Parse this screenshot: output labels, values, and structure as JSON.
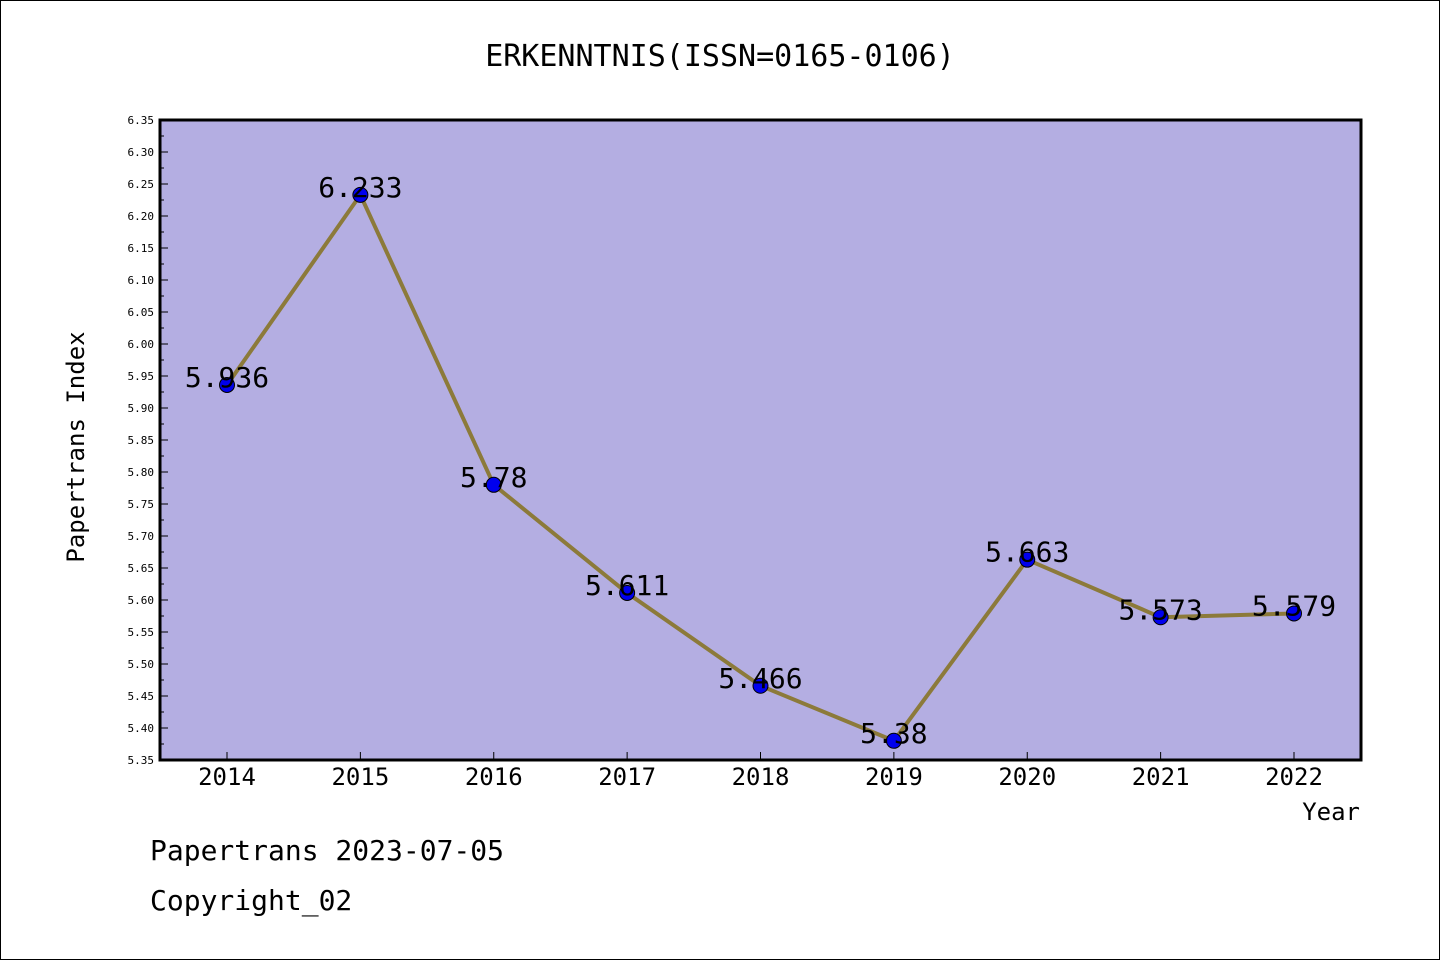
{
  "chart_data": {
    "type": "line",
    "title": "ERKENNTNIS(ISSN=0165-0106)",
    "xlabel": "Year",
    "ylabel": "Papertrans Index",
    "categories": [
      "2014",
      "2015",
      "2016",
      "2017",
      "2018",
      "2019",
      "2020",
      "2021",
      "2022"
    ],
    "series": [
      {
        "values": [
          5.936,
          6.233,
          5.78,
          5.611,
          5.466,
          5.38,
          5.663,
          5.573,
          5.579
        ],
        "data_labels": [
          "5.936",
          "6.233",
          "5.78",
          "5.611",
          "5.466",
          "5.38",
          "5.663",
          "5.573",
          "5.579"
        ]
      }
    ],
    "ylim": [
      5.35,
      6.35
    ],
    "yticks": [
      "5.35",
      "5.40",
      "5.45",
      "5.50",
      "5.55",
      "5.60",
      "5.65",
      "5.70",
      "5.75",
      "5.80",
      "5.85",
      "5.90",
      "5.95",
      "6.00",
      "6.05",
      "6.10",
      "6.15",
      "6.20",
      "6.25",
      "6.30",
      "6.35"
    ],
    "grid": false,
    "colors": {
      "plot_background": "#b4aee2",
      "line": "#8c7a3a",
      "marker": "#0000ee",
      "axis": "#000000"
    }
  },
  "footer": {
    "line1": "Papertrans 2023-07-05",
    "line2": "Copyright_02"
  }
}
